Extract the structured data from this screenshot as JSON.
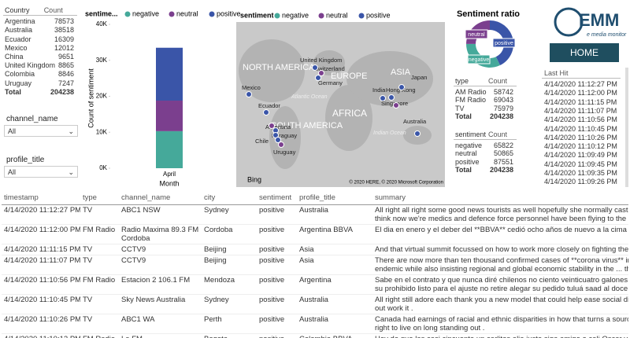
{
  "country_table": {
    "columns": [
      "Country",
      "Count"
    ],
    "rows": [
      [
        "Argentina",
        78573
      ],
      [
        "Australia",
        38518
      ],
      [
        "Ecuador",
        16309
      ],
      [
        "Mexico",
        12012
      ],
      [
        "China",
        9651
      ],
      [
        "United Kingdom",
        8865
      ],
      [
        "Colombia",
        8846
      ],
      [
        "Uruguay",
        7247
      ]
    ],
    "total": [
      "Total",
      204238
    ]
  },
  "slicers": [
    {
      "label": "channel_name",
      "value": "All"
    },
    {
      "label": "profile_title",
      "value": "All"
    }
  ],
  "sentiment_chart": {
    "type": "bar",
    "stacked": true,
    "legend_title": "sentime...",
    "categories": [
      "April"
    ],
    "x_label": "Month",
    "y_label": "Count of sentiment",
    "series": [
      {
        "name": "negative",
        "color": "#45a99a",
        "values": [
          10300
        ]
      },
      {
        "name": "neutral",
        "color": "#7b3f8e",
        "values": [
          8500
        ]
      },
      {
        "name": "positive",
        "color": "#3a55a8",
        "values": [
          14700
        ]
      }
    ],
    "ylim": [
      0,
      40000
    ],
    "yticks": [
      {
        "value": 0,
        "label": "0K"
      },
      {
        "value": 10000,
        "label": "10K"
      },
      {
        "value": 20000,
        "label": "20K"
      },
      {
        "value": 30000,
        "label": "30K"
      },
      {
        "value": 40000,
        "label": "40K"
      }
    ]
  },
  "map": {
    "legend_title": "sentiment",
    "labels": [
      "NORTH AMERICA",
      "EUROPE",
      "ASIA",
      "AFRICA",
      "SOUTH AMERICA",
      "Atlantic Ocean",
      "Indian Ocean",
      "United Kingdom",
      "Switzerland",
      "Germany",
      "Mexico",
      "Ecuador",
      "Argentina",
      "Paraguay",
      "Chile",
      "Uruguay",
      "India",
      "Hong Kong",
      "Japan",
      "Singapore",
      "Australia"
    ],
    "credit": "© 2020 HERE, © 2020 Microsoft Corporation",
    "brand": "Bing"
  },
  "ratio_chart": {
    "title": "Sentiment ratio"
  },
  "type_table": {
    "columns": [
      "type",
      "Count"
    ],
    "rows": [
      [
        "AM Radio",
        58742
      ],
      [
        "FM Radio",
        69043
      ],
      [
        "TV",
        75979
      ]
    ],
    "total": [
      "Total",
      204238
    ]
  },
  "sentiment_table": {
    "columns": [
      "sentiment",
      "Count"
    ],
    "rows": [
      [
        "negative",
        65822
      ],
      [
        "neutral",
        50865
      ],
      [
        "positive",
        87551
      ]
    ],
    "total": [
      "Total",
      204238
    ]
  },
  "logo": {
    "name": "EMM",
    "tagline": "e media monitor"
  },
  "home_button": "HOME",
  "last_hit": {
    "header": "Last Hit",
    "values": [
      "4/14/2020 11:12:27 PM",
      "4/14/2020 11:12:00 PM",
      "4/14/2020 11:11:15 PM",
      "4/14/2020 11:11:07 PM",
      "4/14/2020 11:10:56 PM",
      "4/14/2020 11:10:45 PM",
      "4/14/2020 11:10:26 PM",
      "4/14/2020 11:10:12 PM",
      "4/14/2020 11:09:49 PM",
      "4/14/2020 11:09:45 PM",
      "4/14/2020 11:09:35 PM",
      "4/14/2020 11:09:26 PM"
    ]
  },
  "main_table": {
    "columns": [
      "timestamp",
      "type",
      "channel_name",
      "city",
      "sentiment",
      "profile_title",
      "summary"
    ],
    "rows": [
      [
        "4/14/2020 11:12:27 PM",
        "TV",
        "ABC1 NSW",
        "Sydney",
        "positive",
        "Australia",
        [
          "All right all right some good news tourists as well hopefully she normally cast in your mind as th",
          "think now we're medics and defence force personnel have been flying to the state north ways to"
        ]
      ],
      [
        "4/14/2020 11:12:00 PM",
        "FM Radio",
        "Radio Maxima 89.3 FM Cordoba",
        "Cordoba",
        "positive",
        "Argentina BBVA",
        [
          "El dia en enero y el deber del **BBVA** cedió ocho años de nuevo a la cima para escolares y un"
        ]
      ],
      [
        "4/14/2020 11:11:15 PM",
        "TV",
        "CCTV9",
        "Beijing",
        "positive",
        "Asia",
        [
          "And that virtual summit focussed on how to work more closely on fighting the **corona virus**"
        ]
      ],
      [
        "4/14/2020 11:11:07 PM",
        "TV",
        "CCTV9",
        "Beijing",
        "positive",
        "Asia",
        [
          "There are now more than ten thousand confirmed cases of **corona virus** infection among as",
          "endemic while also insisting regional and global economic stability in the ... this is ."
        ]
      ],
      [
        "4/14/2020 11:10:56 PM",
        "FM Radio",
        "Estacion 2 106.1 FM",
        "Mendoza",
        "positive",
        "Argentina",
        [
          "Sabe en el contrato y que nunca diré chilenos no ciento veinticuatro galones de primera calidad",
          "su prohibido listo para el ajuste no retire alegar su pedido tuluá saad al doce y uno seiscientos"
        ]
      ],
      [
        "4/14/2020 11:10:45 PM",
        "TV",
        "Sky News Australia",
        "Sydney",
        "positive",
        "Australia",
        [
          "All right still adore each thank you a new model that could help ease social distancing measure",
          "out work it ."
        ]
      ],
      [
        "4/14/2020 11:10:26 PM",
        "TV",
        "ABC1 WA",
        "Perth",
        "positive",
        "Australia",
        [
          "Canada had earnings of racial and ethnic disparities in how that turns a source show in which h",
          "right to live on long standing out ."
        ]
      ],
      [
        "4/14/2020 11:10:12 PM",
        "FM Radio",
        "La FM",
        "Bogota",
        "positive",
        "Colombia BBVA",
        [
          "Hoy de que las casi cincuenta un carlitos alia juste siga amigo o cali Oscar ya por favor que me"
        ]
      ]
    ]
  }
}
